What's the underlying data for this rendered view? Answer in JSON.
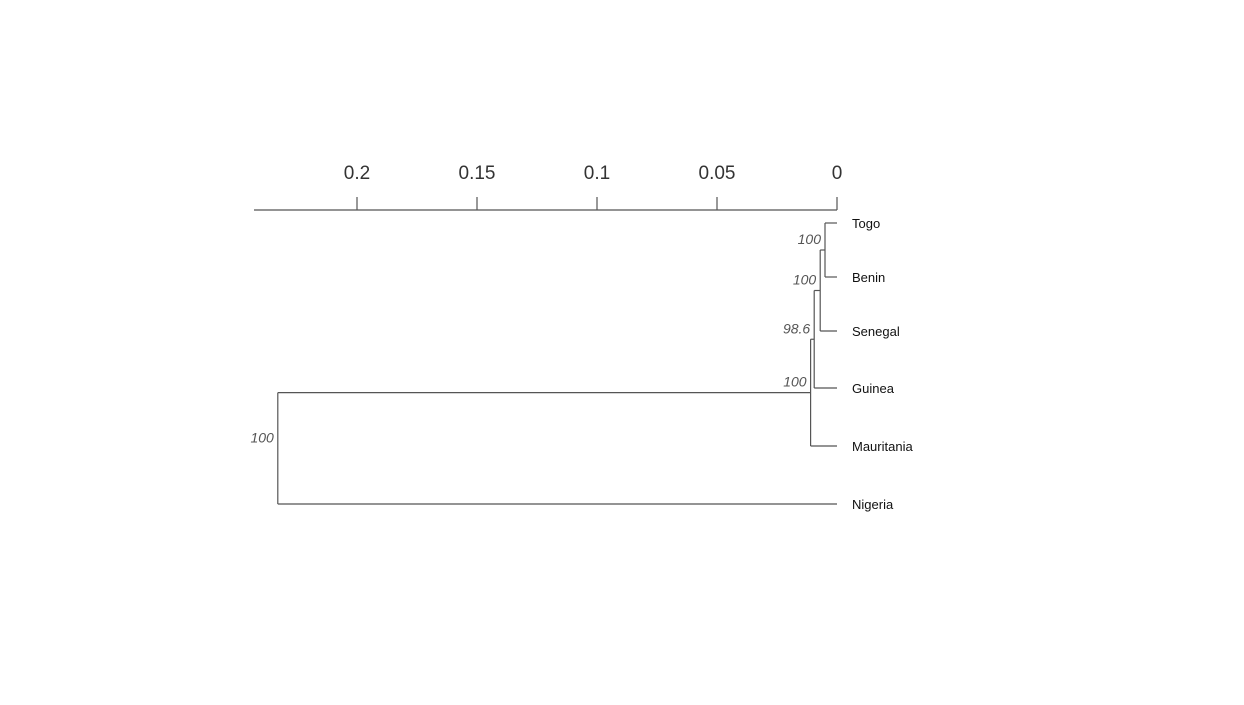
{
  "chart_data": {
    "type": "dendrogram",
    "axis": {
      "ticks": [
        {
          "value": 0.2,
          "label": "0.2"
        },
        {
          "value": 0.15,
          "label": "0.15"
        },
        {
          "value": 0.1,
          "label": "0.1"
        },
        {
          "value": 0.05,
          "label": "0.05"
        },
        {
          "value": 0,
          "label": "0"
        }
      ],
      "range": [
        0.243,
        0
      ],
      "reversed": true
    },
    "leaves": [
      {
        "id": "togo",
        "label": "Togo",
        "height": 0
      },
      {
        "id": "benin",
        "label": "Benin",
        "height": 0
      },
      {
        "id": "senegal",
        "label": "Senegal",
        "height": 0
      },
      {
        "id": "guinea",
        "label": "Guinea",
        "height": 0
      },
      {
        "id": "mauritania",
        "label": "Mauritania",
        "height": 0
      },
      {
        "id": "nigeria",
        "label": "Nigeria",
        "height": 0
      }
    ],
    "nodes": [
      {
        "id": "n1",
        "children": [
          "togo",
          "benin"
        ],
        "height": 0.005,
        "support": "100"
      },
      {
        "id": "n2",
        "children": [
          "n1",
          "senegal"
        ],
        "height": 0.007,
        "support": "100"
      },
      {
        "id": "n3",
        "children": [
          "n2",
          "guinea"
        ],
        "height": 0.0095,
        "support": "98.6"
      },
      {
        "id": "n4",
        "children": [
          "n3",
          "mauritania"
        ],
        "height": 0.011,
        "support": "100"
      },
      {
        "id": "n5",
        "children": [
          "n4",
          "nigeria"
        ],
        "height": 0.233,
        "support": "100"
      }
    ]
  }
}
